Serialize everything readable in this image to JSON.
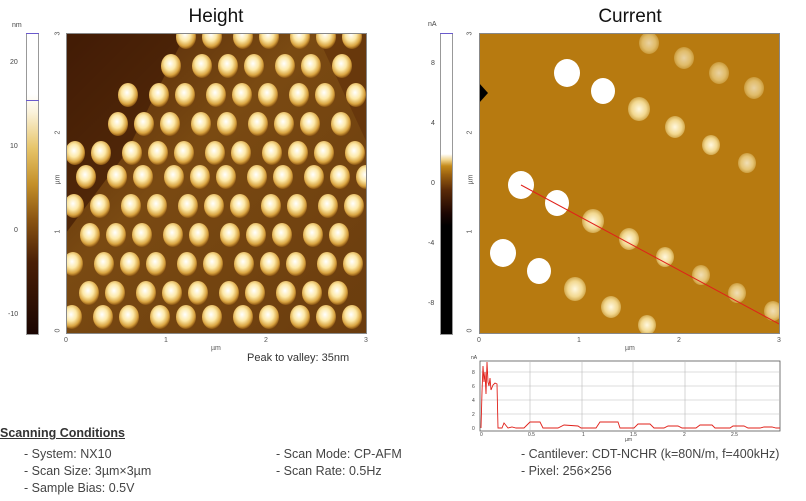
{
  "height_panel": {
    "title": "Height",
    "unit": "nm",
    "colorbar_ticks": [
      "20",
      "10",
      "0",
      "-10"
    ],
    "y_label": "µm",
    "y_ticks": [
      "3",
      "2",
      "1",
      "0"
    ],
    "x_ticks": [
      "0",
      "1",
      "2",
      "3"
    ],
    "x_label": "µm",
    "note": "Peak to valley: 35nm"
  },
  "current_panel": {
    "title": "Current",
    "unit": "nA",
    "colorbar_ticks": [
      "8",
      "4",
      "0",
      "-4",
      "-8"
    ],
    "y_label": "µm",
    "y_ticks": [
      "3",
      "2",
      "1",
      "0"
    ],
    "x_ticks": [
      "0",
      "1",
      "2",
      "3"
    ],
    "x_label": "µm"
  },
  "profile": {
    "y_unit": "nA",
    "y_ticks": [
      "8",
      "6",
      "4",
      "2",
      "0"
    ],
    "x_ticks": [
      "0",
      "0.5",
      "1",
      "1.5",
      "2",
      "2.5"
    ],
    "x_label": "µm",
    "line_color": "#e0201a"
  },
  "conditions": {
    "heading": "Scanning Conditions",
    "items": [
      "- System: NX10",
      "- Scan Size: 3µm×3µm",
      "- Sample Bias: 0.5V",
      "- Scan Mode: CP-AFM",
      "- Scan Rate: 0.5Hz",
      "- Cantilever: CDT-NCHR (k=80N/m, f=400kHz)",
      "- Pixel: 256×256"
    ]
  },
  "colors": {
    "height_bg": "#7a4a10",
    "current_bg": "#b77a10",
    "accent_line": "#e0201a"
  }
}
